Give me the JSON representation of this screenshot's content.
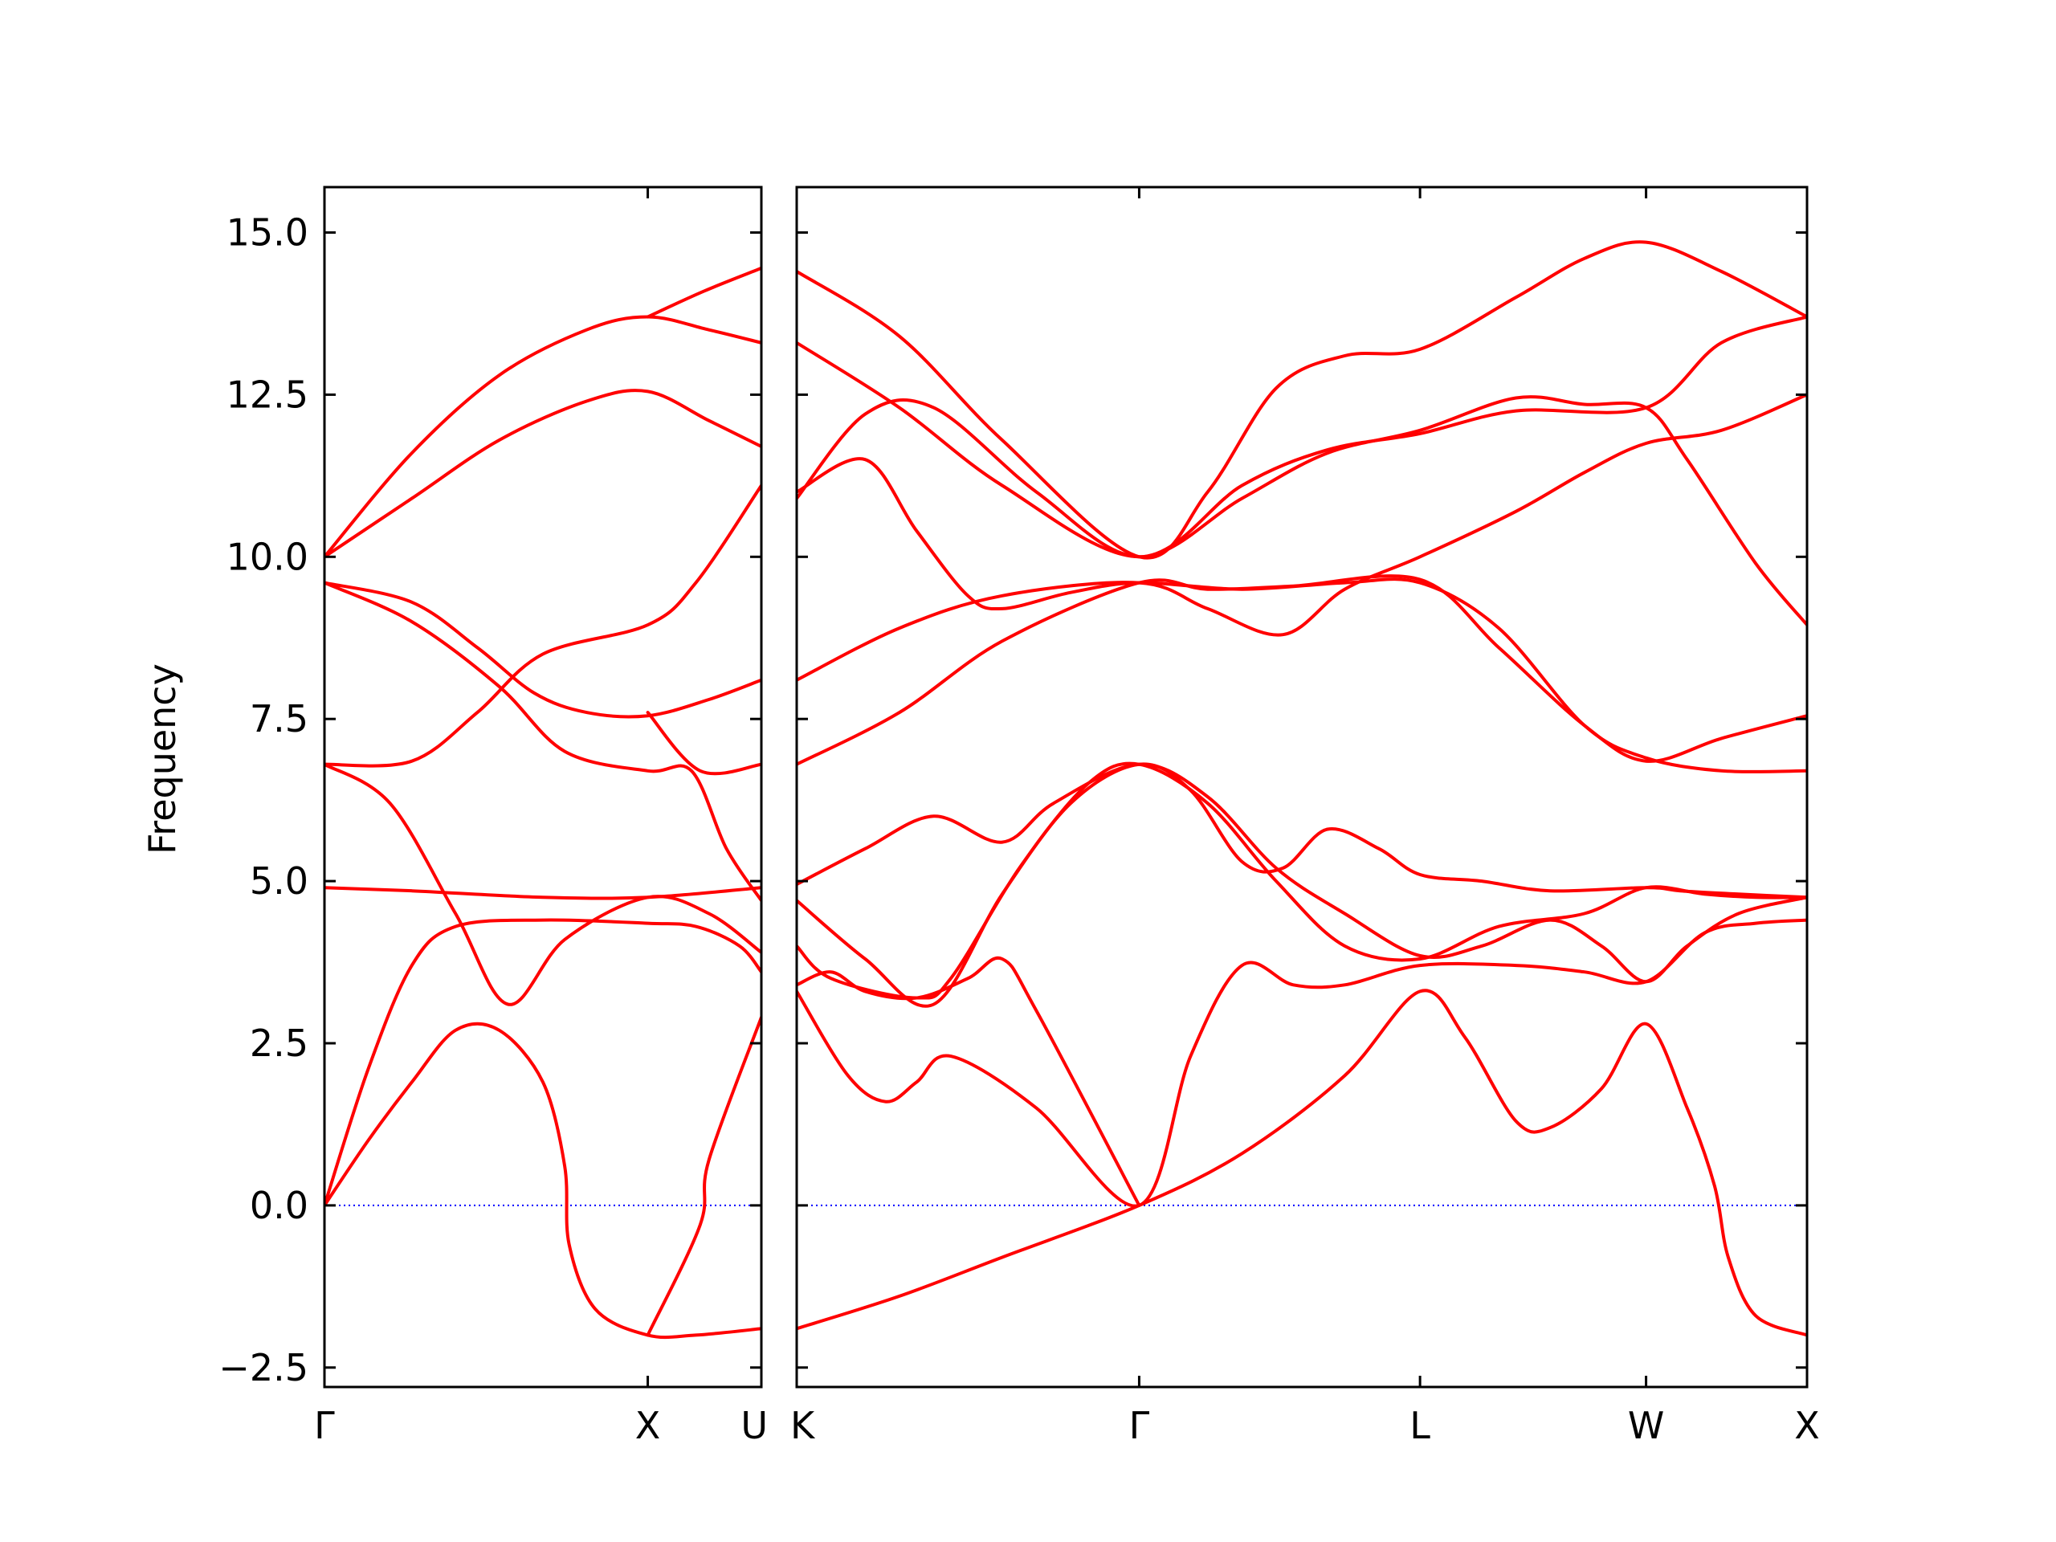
{
  "chart_data": {
    "type": "line",
    "title": "",
    "ylabel": "Frequency",
    "xlabel": "",
    "ylim": [
      -2.8,
      15.7
    ],
    "yticks": [
      -2.5,
      0.0,
      2.5,
      5.0,
      7.5,
      10.0,
      12.5,
      15.0
    ],
    "ytick_labels": [
      "−2.5",
      "0.0",
      "2.5",
      "5.0",
      "7.5",
      "10.0",
      "12.5",
      "15.0"
    ],
    "zero_line_color": "#0000ff",
    "band_color": "#ff0000",
    "grid": false,
    "segments": [
      {
        "x_range": [
          0,
          1
        ],
        "ticks": [
          {
            "x": 0,
            "label": "Γ"
          },
          {
            "x": 0.74,
            "label": "X"
          },
          {
            "x": 1,
            "label": "U"
          }
        ],
        "bands": [
          [
            [
              0,
              0
            ],
            [
              0.1,
              1.0
            ],
            [
              0.2,
              1.9
            ],
            [
              0.3,
              2.7
            ],
            [
              0.4,
              2.7
            ],
            [
              0.5,
              1.9
            ],
            [
              0.55,
              0.6
            ],
            [
              0.56,
              -0.6
            ],
            [
              0.62,
              -1.6
            ],
            [
              0.74,
              -2.0
            ],
            [
              0.85,
              -2.0
            ],
            [
              1,
              -1.9
            ]
          ],
          [
            [
              0,
              0
            ],
            [
              0.1,
              2.1
            ],
            [
              0.2,
              3.7
            ],
            [
              0.3,
              4.3
            ],
            [
              0.5,
              4.4
            ],
            [
              0.74,
              4.35
            ],
            [
              0.85,
              4.3
            ],
            [
              0.95,
              4.0
            ],
            [
              1,
              3.6
            ]
          ],
          [
            [
              0,
              6.8
            ],
            [
              0.15,
              6.2
            ],
            [
              0.3,
              4.5
            ],
            [
              0.42,
              3.1
            ],
            [
              0.55,
              4.1
            ],
            [
              0.74,
              4.75
            ],
            [
              0.88,
              4.5
            ],
            [
              1,
              3.9
            ]
          ],
          [
            [
              0,
              6.8
            ],
            [
              0.2,
              6.85
            ],
            [
              0.35,
              7.6
            ],
            [
              0.5,
              8.5
            ],
            [
              0.74,
              8.95
            ],
            [
              0.85,
              9.6
            ],
            [
              1,
              11.1
            ]
          ],
          [
            [
              0,
              9.6
            ],
            [
              0.2,
              9.3
            ],
            [
              0.35,
              8.6
            ],
            [
              0.48,
              7.9
            ],
            [
              0.6,
              7.6
            ],
            [
              0.74,
              7.55
            ],
            [
              0.88,
              7.8
            ],
            [
              1,
              8.1
            ]
          ],
          [
            [
              0,
              9.6
            ],
            [
              0.2,
              9.0
            ],
            [
              0.4,
              8.0
            ],
            [
              0.55,
              7.0
            ],
            [
              0.74,
              6.7
            ],
            [
              0.84,
              6.7
            ],
            [
              0.92,
              5.5
            ],
            [
              1,
              4.7
            ]
          ],
          [
            [
              0,
              10.0
            ],
            [
              0.2,
              11.6
            ],
            [
              0.4,
              12.8
            ],
            [
              0.6,
              13.5
            ],
            [
              0.74,
              13.7
            ],
            [
              0.88,
              13.5
            ],
            [
              1,
              13.3
            ]
          ],
          [
            [
              0,
              10.0
            ],
            [
              0.2,
              10.9
            ],
            [
              0.4,
              11.8
            ],
            [
              0.6,
              12.4
            ],
            [
              0.74,
              12.55
            ],
            [
              0.88,
              12.1
            ],
            [
              1,
              11.7
            ]
          ],
          [
            [
              0,
              4.9
            ],
            [
              0.2,
              4.85
            ],
            [
              0.5,
              4.75
            ],
            [
              0.74,
              4.75
            ],
            [
              1,
              4.9
            ]
          ],
          [
            [
              0.74,
              13.7
            ],
            [
              0.87,
              14.1
            ],
            [
              1,
              14.45
            ]
          ],
          [
            [
              0.74,
              7.6
            ],
            [
              0.86,
              6.7
            ],
            [
              1,
              6.8
            ]
          ],
          [
            [
              0.74,
              -2.0
            ],
            [
              0.86,
              -0.3
            ],
            [
              0.88,
              0.7
            ],
            [
              1,
              2.9
            ]
          ]
        ]
      },
      {
        "x_range": [
          0,
          2.95
        ],
        "ticks": [
          {
            "x": 0,
            "label": "K"
          },
          {
            "x": 1,
            "label": "Γ"
          },
          {
            "x": 1.82,
            "label": "L"
          },
          {
            "x": 2.48,
            "label": "W"
          },
          {
            "x": 2.95,
            "label": "X"
          }
        ],
        "bands": [
          [
            [
              0,
              -1.9
            ],
            [
              0.3,
              -1.4
            ],
            [
              0.6,
              -0.8
            ],
            [
              1,
              0
            ],
            [
              1.3,
              0.8
            ],
            [
              1.6,
              2.0
            ],
            [
              1.82,
              3.3
            ],
            [
              1.95,
              2.6
            ],
            [
              2.1,
              1.3
            ],
            [
              2.2,
              1.2
            ],
            [
              2.35,
              1.8
            ],
            [
              2.48,
              2.8
            ],
            [
              2.6,
              1.5
            ],
            [
              2.68,
              0.3
            ],
            [
              2.72,
              -0.8
            ],
            [
              2.8,
              -1.7
            ],
            [
              2.95,
              -2.0
            ]
          ],
          [
            [
              0,
              3.3
            ],
            [
              0.15,
              2.0
            ],
            [
              0.26,
              1.6
            ],
            [
              0.35,
              1.9
            ],
            [
              0.45,
              2.3
            ],
            [
              0.7,
              1.5
            ],
            [
              1,
              0
            ],
            [
              1.15,
              2.3
            ],
            [
              1.3,
              3.7
            ],
            [
              1.45,
              3.4
            ],
            [
              1.6,
              3.4
            ],
            [
              1.82,
              3.7
            ],
            [
              2.1,
              3.7
            ],
            [
              2.3,
              3.6
            ],
            [
              2.48,
              3.45
            ],
            [
              2.65,
              4.2
            ],
            [
              2.8,
              4.35
            ],
            [
              2.95,
              4.4
            ]
          ],
          [
            [
              0,
              3.4
            ],
            [
              0.1,
              3.6
            ],
            [
              0.2,
              3.3
            ],
            [
              0.35,
              3.2
            ],
            [
              0.5,
              3.5
            ],
            [
              0.6,
              3.8
            ],
            [
              0.7,
              3.0
            ],
            [
              1,
              0
            ]
          ],
          [
            [
              0,
              4.0
            ],
            [
              0.1,
              3.5
            ],
            [
              0.35,
              3.2
            ],
            [
              0.45,
              3.5
            ],
            [
              0.65,
              5.2
            ],
            [
              0.85,
              6.5
            ],
            [
              1,
              6.8
            ],
            [
              1.2,
              6.2
            ],
            [
              1.4,
              5.0
            ],
            [
              1.6,
              4.0
            ],
            [
              1.82,
              3.8
            ],
            [
              2.05,
              4.3
            ],
            [
              2.3,
              4.5
            ],
            [
              2.48,
              4.9
            ],
            [
              2.65,
              4.8
            ],
            [
              2.8,
              4.75
            ],
            [
              2.95,
              4.75
            ]
          ],
          [
            [
              0,
              4.7
            ],
            [
              0.2,
              3.8
            ],
            [
              0.4,
              3.1
            ],
            [
              0.6,
              4.8
            ],
            [
              0.8,
              6.2
            ],
            [
              1,
              6.8
            ],
            [
              1.15,
              6.4
            ],
            [
              1.3,
              5.3
            ],
            [
              1.42,
              5.2
            ],
            [
              1.55,
              5.8
            ],
            [
              1.7,
              5.5
            ],
            [
              1.82,
              5.1
            ],
            [
              2.0,
              5.0
            ],
            [
              2.2,
              4.85
            ],
            [
              2.48,
              4.9
            ],
            [
              2.58,
              4.85
            ],
            [
              2.75,
              4.8
            ],
            [
              2.95,
              4.75
            ]
          ],
          [
            [
              0,
              4.95
            ],
            [
              0.2,
              5.5
            ],
            [
              0.4,
              6.0
            ],
            [
              0.6,
              5.6
            ],
            [
              0.75,
              6.2
            ],
            [
              1,
              6.8
            ],
            [
              1.2,
              6.3
            ],
            [
              1.4,
              5.2
            ],
            [
              1.6,
              4.5
            ],
            [
              1.82,
              3.85
            ],
            [
              2.0,
              4.0
            ],
            [
              2.2,
              4.4
            ],
            [
              2.35,
              4.0
            ],
            [
              2.48,
              3.45
            ],
            [
              2.6,
              4.0
            ],
            [
              2.75,
              4.5
            ],
            [
              2.95,
              4.75
            ]
          ],
          [
            [
              0,
              6.8
            ],
            [
              0.3,
              7.6
            ],
            [
              0.6,
              8.7
            ],
            [
              1,
              9.6
            ],
            [
              1.2,
              9.5
            ],
            [
              1.45,
              9.55
            ],
            [
              1.82,
              9.65
            ],
            [
              2.05,
              8.6
            ],
            [
              2.3,
              7.4
            ],
            [
              2.48,
              6.85
            ],
            [
              2.7,
              7.2
            ],
            [
              2.95,
              7.55
            ]
          ],
          [
            [
              0,
              8.1
            ],
            [
              0.3,
              8.9
            ],
            [
              0.6,
              9.4
            ],
            [
              1,
              9.6
            ],
            [
              1.2,
              9.2
            ],
            [
              1.42,
              8.8
            ],
            [
              1.6,
              9.5
            ],
            [
              1.82,
              10.0
            ],
            [
              2.1,
              10.7
            ],
            [
              2.3,
              11.3
            ],
            [
              2.48,
              11.75
            ],
            [
              2.7,
              11.95
            ],
            [
              2.95,
              12.5
            ]
          ],
          [
            [
              0,
              11.0
            ],
            [
              0.2,
              11.5
            ],
            [
              0.35,
              10.4
            ],
            [
              0.5,
              9.4
            ],
            [
              0.6,
              9.2
            ],
            [
              0.8,
              9.45
            ],
            [
              1,
              9.6
            ],
            [
              1.3,
              9.5
            ],
            [
              1.6,
              9.6
            ],
            [
              1.82,
              9.6
            ],
            [
              2.05,
              8.9
            ],
            [
              2.3,
              7.4
            ],
            [
              2.48,
              6.9
            ],
            [
              2.7,
              6.7
            ],
            [
              2.95,
              6.7
            ]
          ],
          [
            [
              0,
              10.9
            ],
            [
              0.2,
              12.2
            ],
            [
              0.4,
              12.3
            ],
            [
              0.7,
              11.0
            ],
            [
              1,
              10.0
            ],
            [
              1.3,
              10.9
            ],
            [
              1.55,
              11.6
            ],
            [
              1.82,
              11.95
            ],
            [
              2.1,
              12.45
            ],
            [
              2.3,
              12.35
            ],
            [
              2.48,
              12.3
            ],
            [
              2.6,
              11.5
            ],
            [
              2.8,
              9.9
            ],
            [
              2.95,
              8.95
            ]
          ],
          [
            [
              0,
              13.3
            ],
            [
              0.3,
              12.3
            ],
            [
              0.6,
              11.1
            ],
            [
              1,
              10.0
            ],
            [
              1.3,
              11.1
            ],
            [
              1.55,
              11.65
            ],
            [
              1.82,
              11.9
            ],
            [
              2.1,
              12.25
            ],
            [
              2.48,
              12.3
            ],
            [
              2.7,
              13.3
            ],
            [
              2.95,
              13.7
            ]
          ],
          [
            [
              0,
              14.4
            ],
            [
              0.3,
              13.4
            ],
            [
              0.6,
              11.8
            ],
            [
              1,
              10.0
            ],
            [
              1.2,
              11.0
            ],
            [
              1.4,
              12.6
            ],
            [
              1.6,
              13.1
            ],
            [
              1.82,
              13.2
            ],
            [
              2.1,
              14.0
            ],
            [
              2.3,
              14.6
            ],
            [
              2.48,
              14.85
            ],
            [
              2.7,
              14.4
            ],
            [
              2.95,
              13.7
            ]
          ]
        ]
      }
    ]
  }
}
